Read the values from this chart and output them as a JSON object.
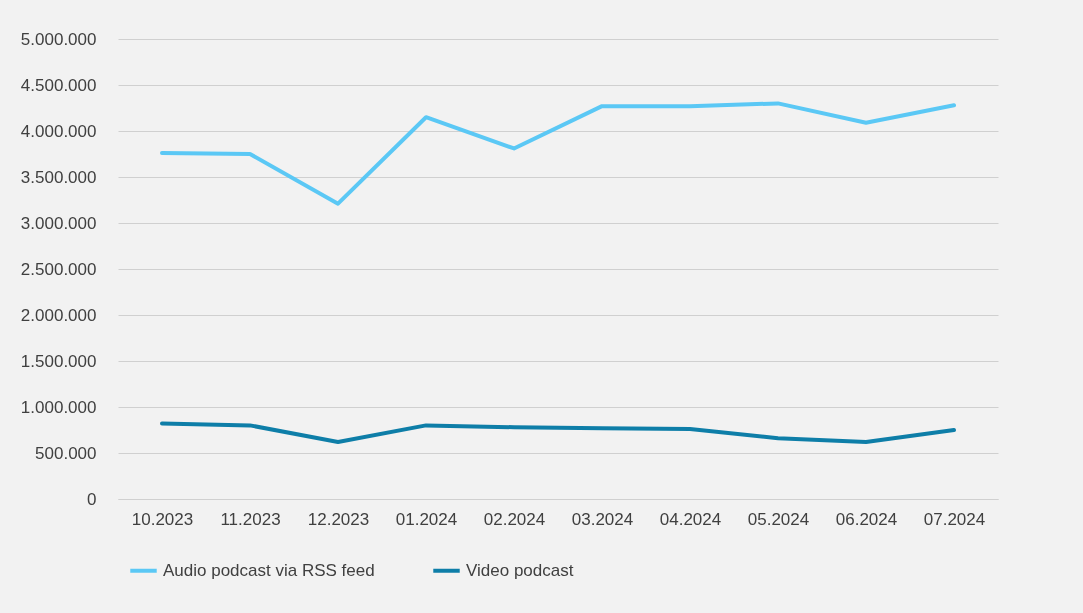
{
  "chart_data": {
    "type": "line",
    "categories": [
      "10.2023",
      "11.2023",
      "12.2023",
      "01.2024",
      "02.2024",
      "03.2024",
      "04.2024",
      "05.2024",
      "06.2024",
      "07.2024"
    ],
    "series": [
      {
        "name": "Audio podcast via RSS feed",
        "color": "#5bc8f5",
        "values": [
          3760000,
          3750000,
          3210000,
          4150000,
          3810000,
          4270000,
          4270000,
          4300000,
          4090000,
          4280000
        ]
      },
      {
        "name": "Video podcast",
        "color": "#0e7ea8",
        "values": [
          820000,
          800000,
          620000,
          800000,
          780000,
          770000,
          760000,
          660000,
          620000,
          750000
        ]
      }
    ],
    "ylim": [
      0,
      5000000
    ],
    "yticks": [
      {
        "value": 0,
        "label": "0"
      },
      {
        "value": 500000,
        "label": "500.000"
      },
      {
        "value": 1000000,
        "label": "1.000.000"
      },
      {
        "value": 1500000,
        "label": "1.500.000"
      },
      {
        "value": 2000000,
        "label": "2.000.000"
      },
      {
        "value": 2500000,
        "label": "2.500.000"
      },
      {
        "value": 3000000,
        "label": "3.000.000"
      },
      {
        "value": 3500000,
        "label": "3.500.000"
      },
      {
        "value": 4000000,
        "label": "4.000.000"
      },
      {
        "value": 4500000,
        "label": "4.500.000"
      },
      {
        "value": 5000000,
        "label": "5.000.000"
      }
    ],
    "grid": "y",
    "legend": "bottom"
  }
}
